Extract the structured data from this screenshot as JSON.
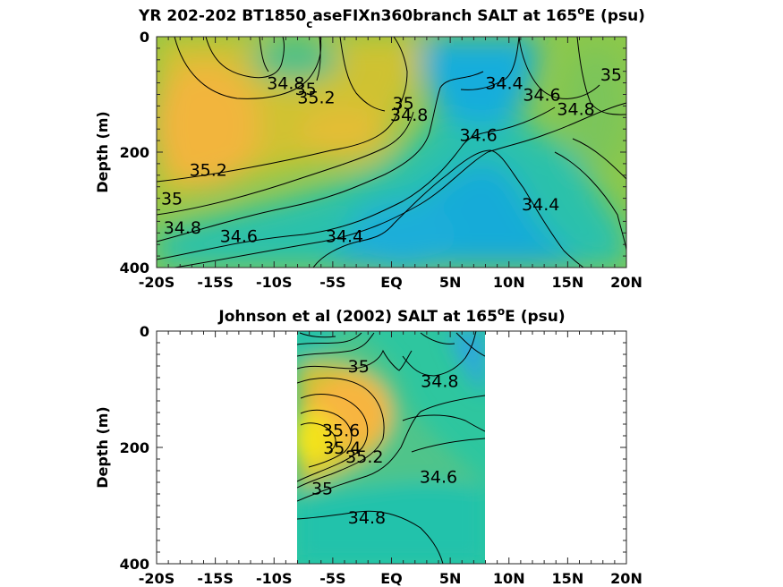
{
  "colors": {
    "salinity_low": "#17aede",
    "salinity_mid_low": "#2cc0a4",
    "salinity_mid": "#8cc84a",
    "salinity_mid_high": "#d6bf2d",
    "salinity_high": "#f7b840",
    "salinity_max": "#f5e61e",
    "contour": "#000000"
  },
  "chart_data": [
    {
      "type": "heatmap",
      "title_main": "YR 202-202 BT1850",
      "title_sub": "c",
      "title_rest": "aseFIXn360branch SALT at 165",
      "title_sup": "o",
      "title_end": "E (psu)",
      "ylabel": "Depth (m)",
      "xlabel": "",
      "x_ticks": [
        "-20S",
        "-15S",
        "-10S",
        "-5S",
        "EQ",
        "5N",
        "10N",
        "15N",
        "20N"
      ],
      "y_ticks": [
        "0",
        "200",
        "400"
      ],
      "xlim": [
        -20,
        20
      ],
      "ylim": [
        0,
        400
      ],
      "colormap": "parula",
      "contour_levels": [
        34.4,
        34.6,
        34.8,
        35,
        35.2
      ],
      "contour_labels": [
        {
          "text": "34.8",
          "x": -9,
          "y": 80
        },
        {
          "text": "35",
          "x": -7.3,
          "y": 90
        },
        {
          "text": "35.2",
          "x": -6.4,
          "y": 105
        },
        {
          "text": "35",
          "x": 1,
          "y": 115
        },
        {
          "text": "34.8",
          "x": 1.5,
          "y": 135
        },
        {
          "text": "34.4",
          "x": 9.6,
          "y": 80
        },
        {
          "text": "34.6",
          "x": 12.8,
          "y": 100
        },
        {
          "text": "34.8",
          "x": 15.7,
          "y": 125
        },
        {
          "text": "35",
          "x": 18.7,
          "y": 65
        },
        {
          "text": "34.6",
          "x": 7.4,
          "y": 170
        },
        {
          "text": "35.2",
          "x": -15.6,
          "y": 230
        },
        {
          "text": "35",
          "x": -18.7,
          "y": 280
        },
        {
          "text": "34.8",
          "x": -17.8,
          "y": 330
        },
        {
          "text": "34.6",
          "x": -13,
          "y": 345
        },
        {
          "text": "34.4",
          "x": -4,
          "y": 345
        },
        {
          "text": "34.4",
          "x": 12.7,
          "y": 290
        }
      ]
    },
    {
      "type": "heatmap",
      "title_main": "Johnson et al (2002) SALT at 165",
      "title_sup": "o",
      "title_end": "E (psu)",
      "ylabel": "Depth (m)",
      "xlabel": "",
      "x_ticks": [
        "-20S",
        "-15S",
        "-10S",
        "-5S",
        "EQ",
        "5N",
        "10N",
        "15N",
        "20N"
      ],
      "y_ticks": [
        "0",
        "200",
        "400"
      ],
      "xlim": [
        -20,
        20
      ],
      "ylim": [
        0,
        400
      ],
      "data_xrange": [
        -8,
        8
      ],
      "colormap": "parula",
      "contour_levels": [
        34.6,
        34.8,
        35,
        35.2,
        35.4,
        35.6
      ],
      "contour_labels": [
        {
          "text": "35",
          "x": -2.8,
          "y": 60
        },
        {
          "text": "34.8",
          "x": 4.1,
          "y": 85
        },
        {
          "text": "35.6",
          "x": -4.3,
          "y": 170
        },
        {
          "text": "35.4",
          "x": -4.2,
          "y": 200
        },
        {
          "text": "35.2",
          "x": -2.3,
          "y": 215
        },
        {
          "text": "34.6",
          "x": 4,
          "y": 250
        },
        {
          "text": "35",
          "x": -5.9,
          "y": 270
        },
        {
          "text": "34.8",
          "x": -2.1,
          "y": 320
        }
      ]
    }
  ]
}
